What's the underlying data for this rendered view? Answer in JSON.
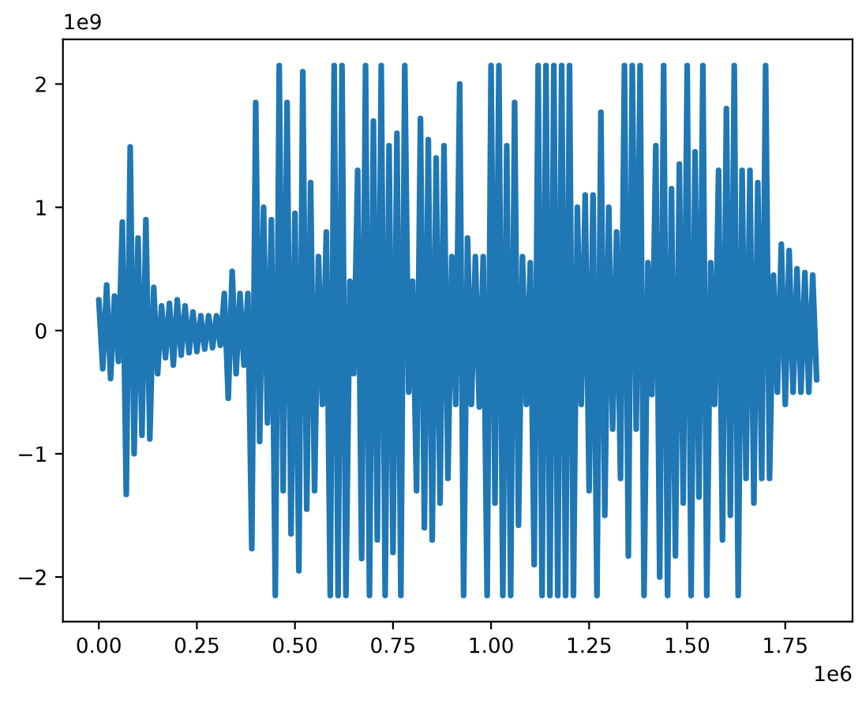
{
  "chart_data": {
    "type": "line",
    "x": [
      0,
      0.01,
      0.02,
      0.03,
      0.04,
      0.05,
      0.06,
      0.07,
      0.08,
      0.09,
      0.1,
      0.11,
      0.12,
      0.13,
      0.14,
      0.15,
      0.16,
      0.17,
      0.18,
      0.19,
      0.2,
      0.21,
      0.22,
      0.23,
      0.24,
      0.25,
      0.26,
      0.27,
      0.28,
      0.29,
      0.3,
      0.31,
      0.32,
      0.33,
      0.34,
      0.35,
      0.36,
      0.37,
      0.38,
      0.39,
      0.4,
      0.41,
      0.42,
      0.43,
      0.44,
      0.45,
      0.46,
      0.47,
      0.48,
      0.49,
      0.5,
      0.51,
      0.52,
      0.53,
      0.54,
      0.55,
      0.56,
      0.57,
      0.58,
      0.59,
      0.6,
      0.61,
      0.62,
      0.63,
      0.64,
      0.65,
      0.66,
      0.67,
      0.68,
      0.69,
      0.7,
      0.71,
      0.72,
      0.73,
      0.74,
      0.75,
      0.76,
      0.77,
      0.78,
      0.79,
      0.8,
      0.81,
      0.82,
      0.83,
      0.84,
      0.85,
      0.86,
      0.87,
      0.88,
      0.89,
      0.9,
      0.91,
      0.92,
      0.93,
      0.94,
      0.95,
      0.96,
      0.97,
      0.98,
      0.99,
      1.0,
      1.01,
      1.02,
      1.03,
      1.04,
      1.05,
      1.06,
      1.07,
      1.08,
      1.09,
      1.1,
      1.11,
      1.12,
      1.13,
      1.14,
      1.15,
      1.16,
      1.17,
      1.18,
      1.19,
      1.2,
      1.21,
      1.22,
      1.23,
      1.24,
      1.25,
      1.26,
      1.27,
      1.28,
      1.29,
      1.3,
      1.31,
      1.32,
      1.33,
      1.34,
      1.35,
      1.36,
      1.37,
      1.38,
      1.39,
      1.4,
      1.41,
      1.42,
      1.43,
      1.44,
      1.45,
      1.46,
      1.47,
      1.48,
      1.49,
      1.5,
      1.51,
      1.52,
      1.53,
      1.54,
      1.55,
      1.56,
      1.57,
      1.58,
      1.59,
      1.6,
      1.61,
      1.62,
      1.63,
      1.64,
      1.65,
      1.66,
      1.67,
      1.68,
      1.69,
      1.7,
      1.71,
      1.72,
      1.73,
      1.74,
      1.75,
      1.76,
      1.77,
      1.78,
      1.79,
      1.8,
      1.81,
      1.82,
      1.83
    ],
    "series": [
      {
        "color": "#1f77b4",
        "values": [
          0.25,
          -0.31,
          0.37,
          -0.39,
          0.28,
          -0.25,
          0.88,
          -1.33,
          1.49,
          -1.0,
          0.75,
          -0.85,
          0.9,
          -0.88,
          0.35,
          -0.35,
          0.2,
          -0.22,
          0.22,
          -0.28,
          0.25,
          -0.2,
          0.2,
          -0.18,
          0.15,
          -0.17,
          0.12,
          -0.15,
          0.12,
          -0.14,
          0.12,
          -0.12,
          0.3,
          -0.55,
          0.48,
          -0.35,
          0.3,
          -0.28,
          0.3,
          -1.77,
          1.85,
          -0.9,
          1.0,
          -0.75,
          0.9,
          -2.15,
          2.15,
          -1.3,
          1.85,
          -1.65,
          0.95,
          -1.95,
          2.1,
          -1.45,
          1.2,
          -1.3,
          0.6,
          -0.6,
          0.8,
          -2.15,
          2.15,
          -2.15,
          2.15,
          -2.15,
          0.4,
          -0.35,
          1.3,
          -1.85,
          2.15,
          -2.15,
          1.7,
          -1.7,
          2.15,
          -2.15,
          1.5,
          -1.8,
          1.6,
          -2.15,
          2.15,
          -0.5,
          0.4,
          -1.3,
          1.72,
          -1.6,
          1.55,
          -1.7,
          1.4,
          -1.4,
          1.5,
          -1.2,
          0.6,
          -0.6,
          2.0,
          -2.15,
          0.75,
          -0.6,
          0.6,
          -0.62,
          0.6,
          -2.15,
          2.15,
          -1.4,
          2.15,
          -2.15,
          1.5,
          -2.15,
          1.85,
          -1.58,
          0.6,
          -0.6,
          0.55,
          -1.9,
          2.15,
          -2.15,
          2.15,
          -2.15,
          2.15,
          -2.15,
          2.15,
          -2.15,
          2.15,
          -2.15,
          1.0,
          -0.6,
          1.1,
          -1.3,
          1.1,
          -2.15,
          1.77,
          -1.5,
          1.0,
          -0.8,
          0.8,
          -1.2,
          2.15,
          -1.83,
          2.15,
          -0.8,
          2.15,
          -2.15,
          0.55,
          -0.52,
          1.5,
          -2.0,
          2.15,
          -2.15,
          1.15,
          -1.83,
          1.35,
          -1.4,
          2.15,
          -2.15,
          1.45,
          -1.35,
          2.15,
          -2.15,
          0.55,
          -0.6,
          1.3,
          -1.7,
          1.8,
          -1.5,
          2.15,
          -2.15,
          1.3,
          -1.2,
          1.3,
          -1.4,
          1.2,
          -1.2,
          2.15,
          -1.2,
          0.45,
          -0.5,
          0.7,
          -0.6,
          0.65,
          -0.5,
          0.5,
          -0.5,
          0.47,
          -0.5,
          0.45,
          -0.4
        ]
      }
    ],
    "xlim": [
      -0.0915,
      1.9215
    ],
    "xticks": [
      {
        "value": 0,
        "label": "0.00"
      },
      0.25,
      {
        "value": 0.5,
        "label": "0.50"
      },
      0.75,
      {
        "value": 1,
        "label": "1.00"
      },
      1.25,
      {
        "value": 1.5,
        "label": "1.50"
      },
      1.75
    ],
    "ylim": [
      -2.362,
      2.362
    ],
    "yticks": [
      {
        "value": -2,
        "label": "−2"
      },
      {
        "value": -1,
        "label": "−1"
      },
      0,
      1,
      2
    ],
    "annotations": [
      "1e9",
      "1e6"
    ],
    "grid": false
  }
}
